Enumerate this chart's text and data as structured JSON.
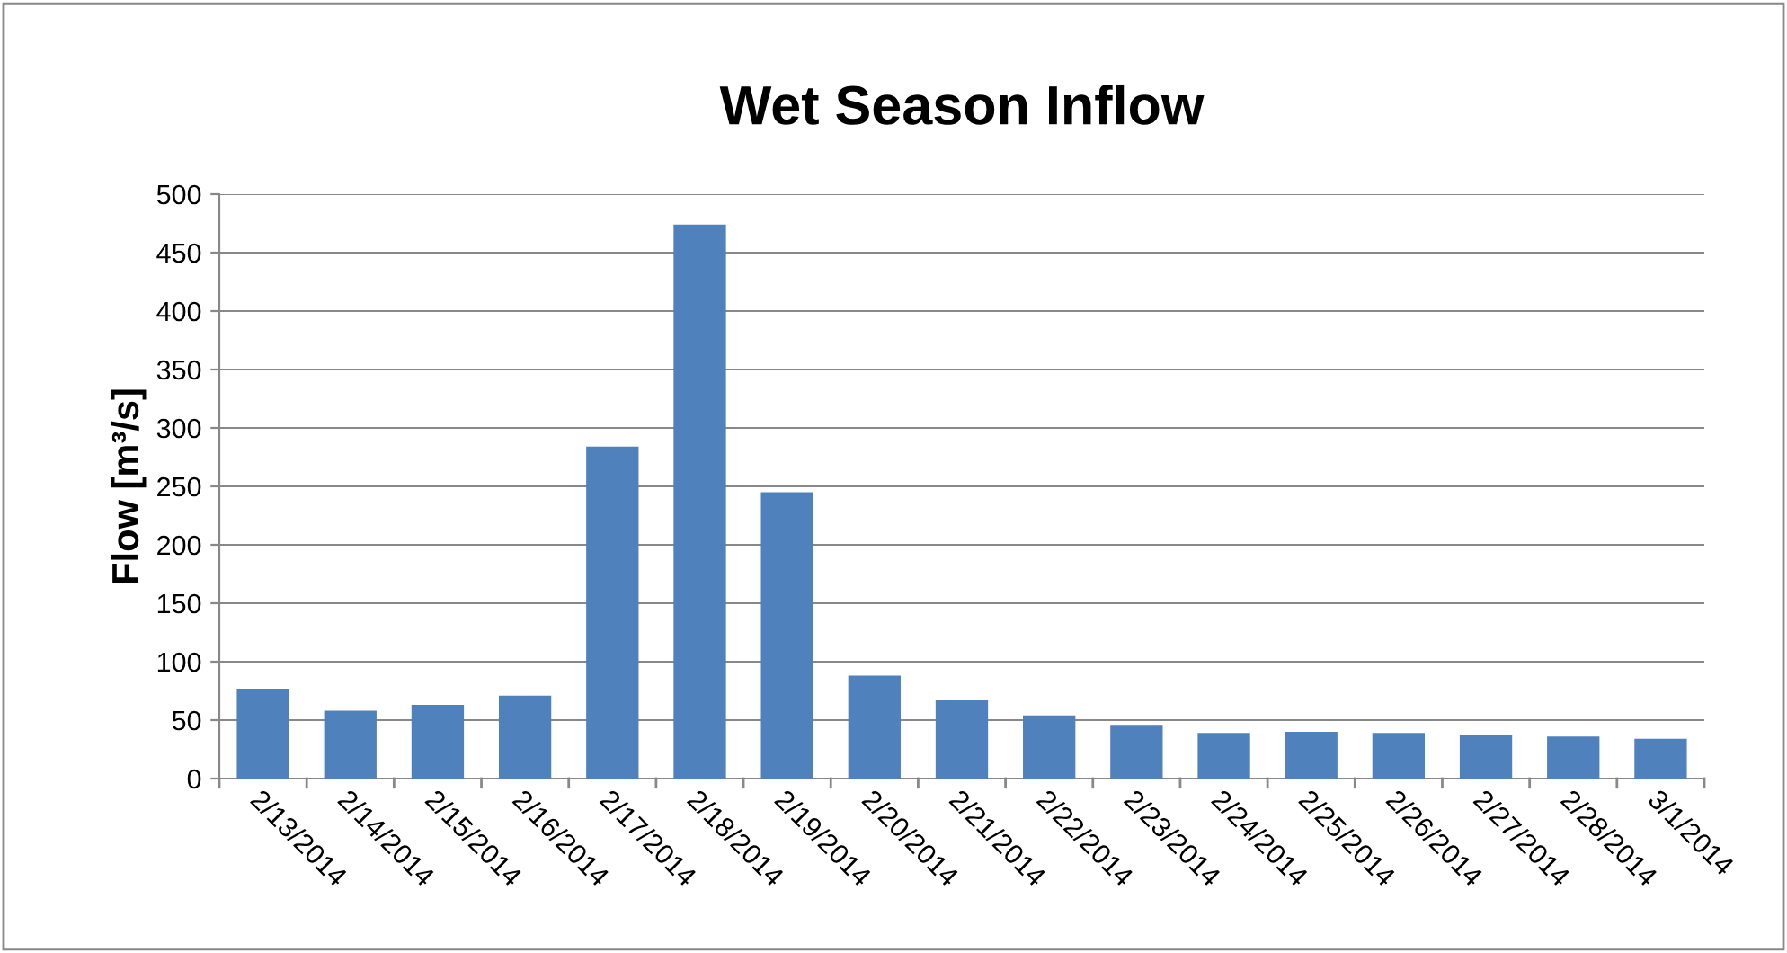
{
  "chart_data": {
    "type": "bar",
    "title": "Wet Season Inflow",
    "ylabel": "Flow [m³/s]",
    "categories": [
      "2/13/2014",
      "2/14/2014",
      "2/15/2014",
      "2/16/2014",
      "2/17/2014",
      "2/18/2014",
      "2/19/2014",
      "2/20/2014",
      "2/21/2014",
      "2/22/2014",
      "2/23/2014",
      "2/24/2014",
      "2/25/2014",
      "2/26/2014",
      "2/27/2014",
      "2/28/2014",
      "3/1/2014"
    ],
    "values": [
      77,
      58,
      63,
      71,
      284,
      474,
      245,
      88,
      67,
      54,
      46,
      39,
      40,
      39,
      37,
      36,
      34
    ],
    "color": "#4f81bd",
    "ylim": [
      0,
      500
    ],
    "yticks": [
      0,
      50,
      100,
      150,
      200,
      250,
      300,
      350,
      400,
      450,
      500
    ],
    "grid": "y",
    "legend": false
  }
}
